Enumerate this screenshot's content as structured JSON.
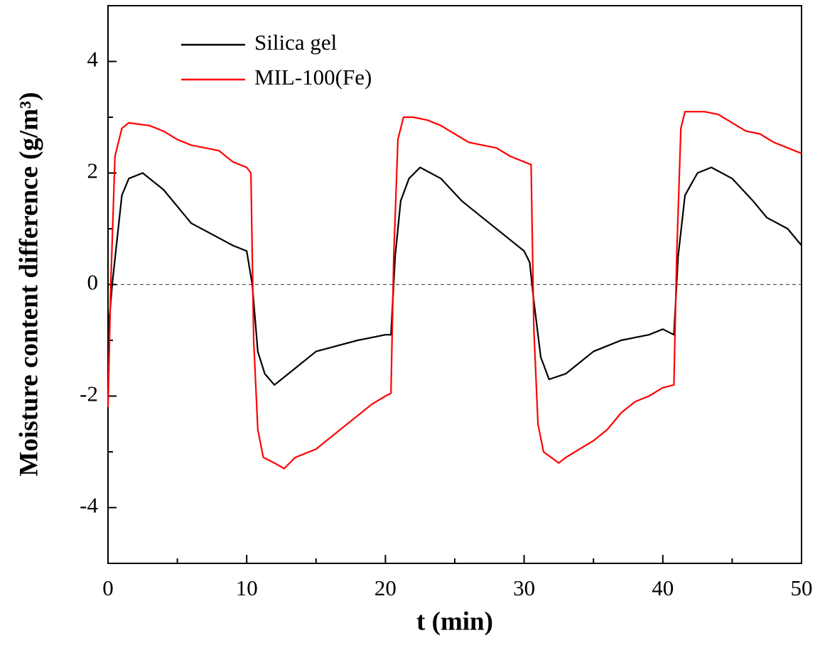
{
  "chart_data": {
    "type": "line",
    "x_label": "t (min)",
    "y_label": "Moisture content difference (g/m³)",
    "xlim": [
      0,
      50
    ],
    "xticks": [
      0,
      10,
      20,
      30,
      40,
      50
    ],
    "xminor": [
      5,
      15,
      25,
      35,
      45
    ],
    "ylim": [
      -5,
      5
    ],
    "yticks": [
      -4,
      -2,
      0,
      2,
      4
    ],
    "yminor": [
      -3,
      -1,
      1,
      3
    ],
    "reference_line": 0,
    "legend": "upper left",
    "series": [
      {
        "name": "Silica gel",
        "color": "#000000",
        "x": [
          0,
          0.3,
          1,
          1.5,
          2.5,
          4,
          5,
          6,
          7.5,
          9,
          10,
          10.4,
          10.8,
          11.3,
          12,
          13,
          14,
          15,
          16.5,
          18,
          20,
          20.4,
          20.7,
          21.1,
          21.7,
          22.5,
          24,
          25.5,
          27,
          28.5,
          30,
          30.4,
          30.7,
          31.2,
          31.8,
          33,
          34,
          35,
          36,
          37,
          39,
          40,
          40.8,
          41.1,
          41.6,
          42.5,
          43.5,
          45,
          46.5,
          47.5,
          49,
          50
        ],
        "values": [
          -0.9,
          0,
          1.6,
          1.9,
          2.0,
          1.7,
          1.4,
          1.1,
          0.9,
          0.7,
          0.6,
          0,
          -1.2,
          -1.6,
          -1.8,
          -1.6,
          -1.4,
          -1.2,
          -1.1,
          -1.0,
          -0.9,
          -0.9,
          0.5,
          1.5,
          1.9,
          2.1,
          1.9,
          1.5,
          1.2,
          0.9,
          0.6,
          0.4,
          -0.3,
          -1.3,
          -1.7,
          -1.6,
          -1.4,
          -1.2,
          -1.1,
          -1.0,
          -0.9,
          -0.8,
          -0.9,
          0.5,
          1.6,
          2.0,
          2.1,
          1.9,
          1.5,
          1.2,
          1.0,
          0.7
        ]
      },
      {
        "name": "MIL-100(Fe)",
        "color": "#ff0000",
        "x": [
          0,
          0.2,
          0.5,
          1,
          1.5,
          3,
          4,
          5,
          6,
          7,
          8,
          9,
          10,
          10.3,
          10.5,
          10.8,
          11.2,
          12,
          12.7,
          13.5,
          15,
          16,
          17,
          18,
          19,
          20,
          20.4,
          20.6,
          20.9,
          21.3,
          22,
          23,
          24,
          25,
          26,
          27,
          28,
          29,
          30,
          30.5,
          30.7,
          31,
          31.4,
          32.5,
          33,
          34,
          35,
          36,
          37,
          38,
          39,
          40,
          40.8,
          41,
          41.3,
          41.6,
          43,
          44,
          45,
          46,
          47,
          48,
          49,
          50
        ],
        "values": [
          -2.2,
          0,
          2.3,
          2.8,
          2.9,
          2.85,
          2.75,
          2.6,
          2.5,
          2.45,
          2.4,
          2.2,
          2.1,
          2.0,
          -1.0,
          -2.6,
          -3.1,
          -3.2,
          -3.3,
          -3.1,
          -2.95,
          -2.75,
          -2.55,
          -2.35,
          -2.15,
          -2.0,
          -1.95,
          0.5,
          2.6,
          3.0,
          3.0,
          2.95,
          2.85,
          2.7,
          2.55,
          2.5,
          2.45,
          2.3,
          2.2,
          2.15,
          -0.8,
          -2.5,
          -3.0,
          -3.2,
          -3.1,
          -2.95,
          -2.8,
          -2.6,
          -2.3,
          -2.1,
          -2.0,
          -1.85,
          -1.8,
          0.5,
          2.8,
          3.1,
          3.1,
          3.05,
          2.9,
          2.75,
          2.7,
          2.55,
          2.45,
          2.35
        ]
      }
    ]
  }
}
